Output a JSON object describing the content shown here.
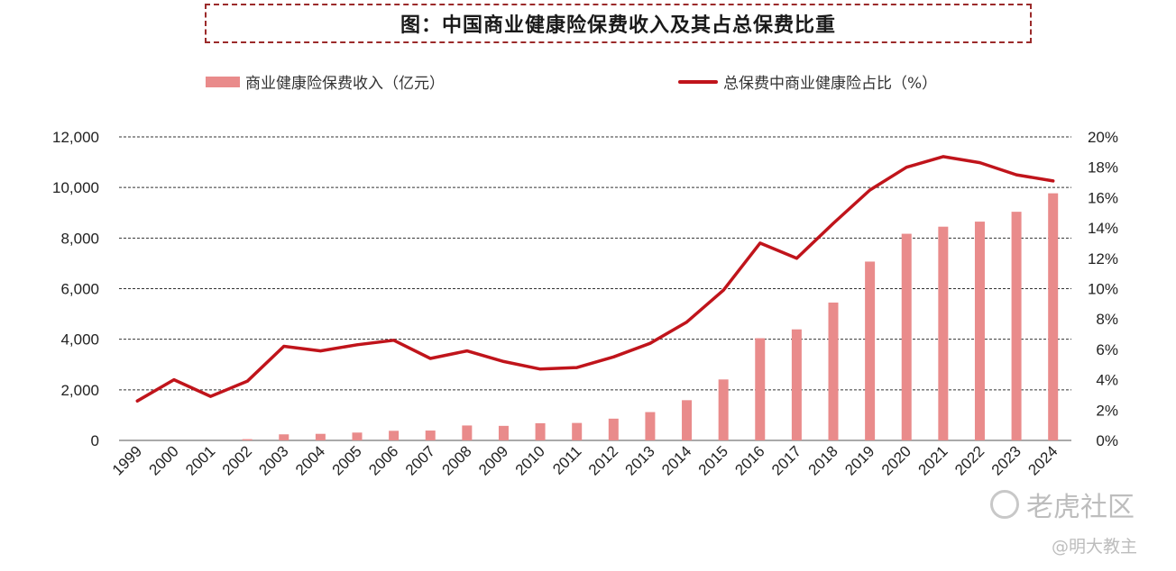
{
  "title": "图：中国商业健康险保费收入及其占总保费比重",
  "legend": {
    "bar_label": "商业健康险保费收入（亿元）",
    "line_label": "总保费中商业健康险占比（%）"
  },
  "watermark": {
    "brand": "老虎社区",
    "author": "@明大教主"
  },
  "chart_data": {
    "type": "bar+line",
    "categories": [
      "1999",
      "2000",
      "2001",
      "2002",
      "2003",
      "2004",
      "2005",
      "2006",
      "2007",
      "2008",
      "2009",
      "2010",
      "2011",
      "2012",
      "2013",
      "2014",
      "2015",
      "2016",
      "2017",
      "2018",
      "2019",
      "2020",
      "2021",
      "2022",
      "2023",
      "2024"
    ],
    "series": [
      {
        "name": "商业健康险保费收入（亿元）",
        "type": "bar",
        "axis": "left",
        "values": [
          0,
          0,
          0,
          50,
          240,
          260,
          310,
          380,
          390,
          590,
          575,
          680,
          690,
          860,
          1120,
          1590,
          2410,
          4040,
          4390,
          5450,
          7070,
          8170,
          8450,
          8650,
          9040,
          9770
        ]
      },
      {
        "name": "总保费中商业健康险占比（%）",
        "type": "line",
        "axis": "right",
        "values": [
          2.6,
          4.0,
          2.9,
          3.9,
          6.2,
          5.9,
          6.3,
          6.6,
          5.4,
          5.9,
          5.2,
          4.7,
          4.8,
          5.5,
          6.4,
          7.8,
          9.9,
          13.0,
          12.0,
          14.3,
          16.5,
          18.0,
          18.7,
          18.3,
          17.5,
          17.1
        ]
      }
    ],
    "yleft": {
      "ylim": [
        0,
        12000
      ],
      "ticks": [
        "0",
        "2,000",
        "4,000",
        "6,000",
        "8,000",
        "10,000",
        "12,000"
      ]
    },
    "yright": {
      "ylim": [
        0,
        20
      ],
      "ticks": [
        "0%",
        "2%",
        "4%",
        "6%",
        "8%",
        "10%",
        "12%",
        "14%",
        "16%",
        "18%",
        "20%"
      ]
    },
    "grid": "horizontal-dashed",
    "legend_position": "top",
    "colors": {
      "bar": "#e98b8b",
      "line": "#c0141b",
      "title_border": "#9b2a2a"
    }
  }
}
